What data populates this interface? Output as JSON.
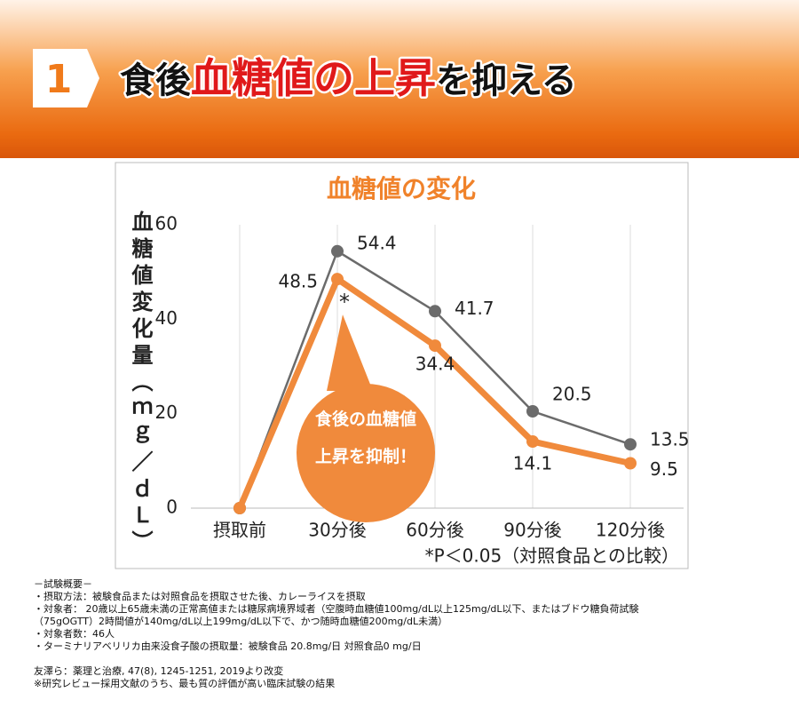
{
  "header": {
    "number": "1",
    "title_parts": [
      "食後",
      "血糖値の上昇",
      "を抑える"
    ]
  },
  "chart_data": {
    "type": "line",
    "title": "血糖値の変化",
    "y_label": "血糖値変化量（ｍｇ／ｄＬ）",
    "categories": [
      "摂取前",
      "30分後",
      "60分後",
      "90分後",
      "120分後"
    ],
    "series": [
      {
        "name": "対照食品",
        "color": "#6b6b6b",
        "values": [
          0,
          54.4,
          41.7,
          20.5,
          13.5
        ]
      },
      {
        "name": "被験食品",
        "color": "#f08a3c",
        "values": [
          0,
          48.5,
          34.4,
          14.1,
          9.5
        ]
      }
    ],
    "ylim": [
      0,
      60
    ],
    "yticks": [
      0,
      20,
      40,
      60
    ],
    "annotations": [
      "*",
      "食後の血糖値",
      "上昇を抑制！",
      "*P＜0.05（対照食品との比較）"
    ]
  },
  "footnotes": [
    "－試験概要－",
    "・摂取方法：被験食品または対照食品を摂取させた後、カレーライスを摂取",
    "・対象者：  20歳以上65歳未満の正常高値または糖尿病境界域者（空腹時血糖値100mg/dL以上125mg/dL以下、またはブドウ糖負荷試験",
    "（75gOGTT）2時間値が140mg/dL以上199mg/dL以下で、かつ随時血糖値200mg/dL未満）",
    "・対象者数：46人",
    "・ターミナリアベリリカ由来没食子酸の摂取量：被験食品 20.8mg/日   対照食品0 mg/日",
    "友澤ら：薬理と治療, 47(8), 1245-1251, 2019より改変",
    "※研究レビュー採用文献のうち、最も質の評価が高い臨床試験の結果"
  ]
}
